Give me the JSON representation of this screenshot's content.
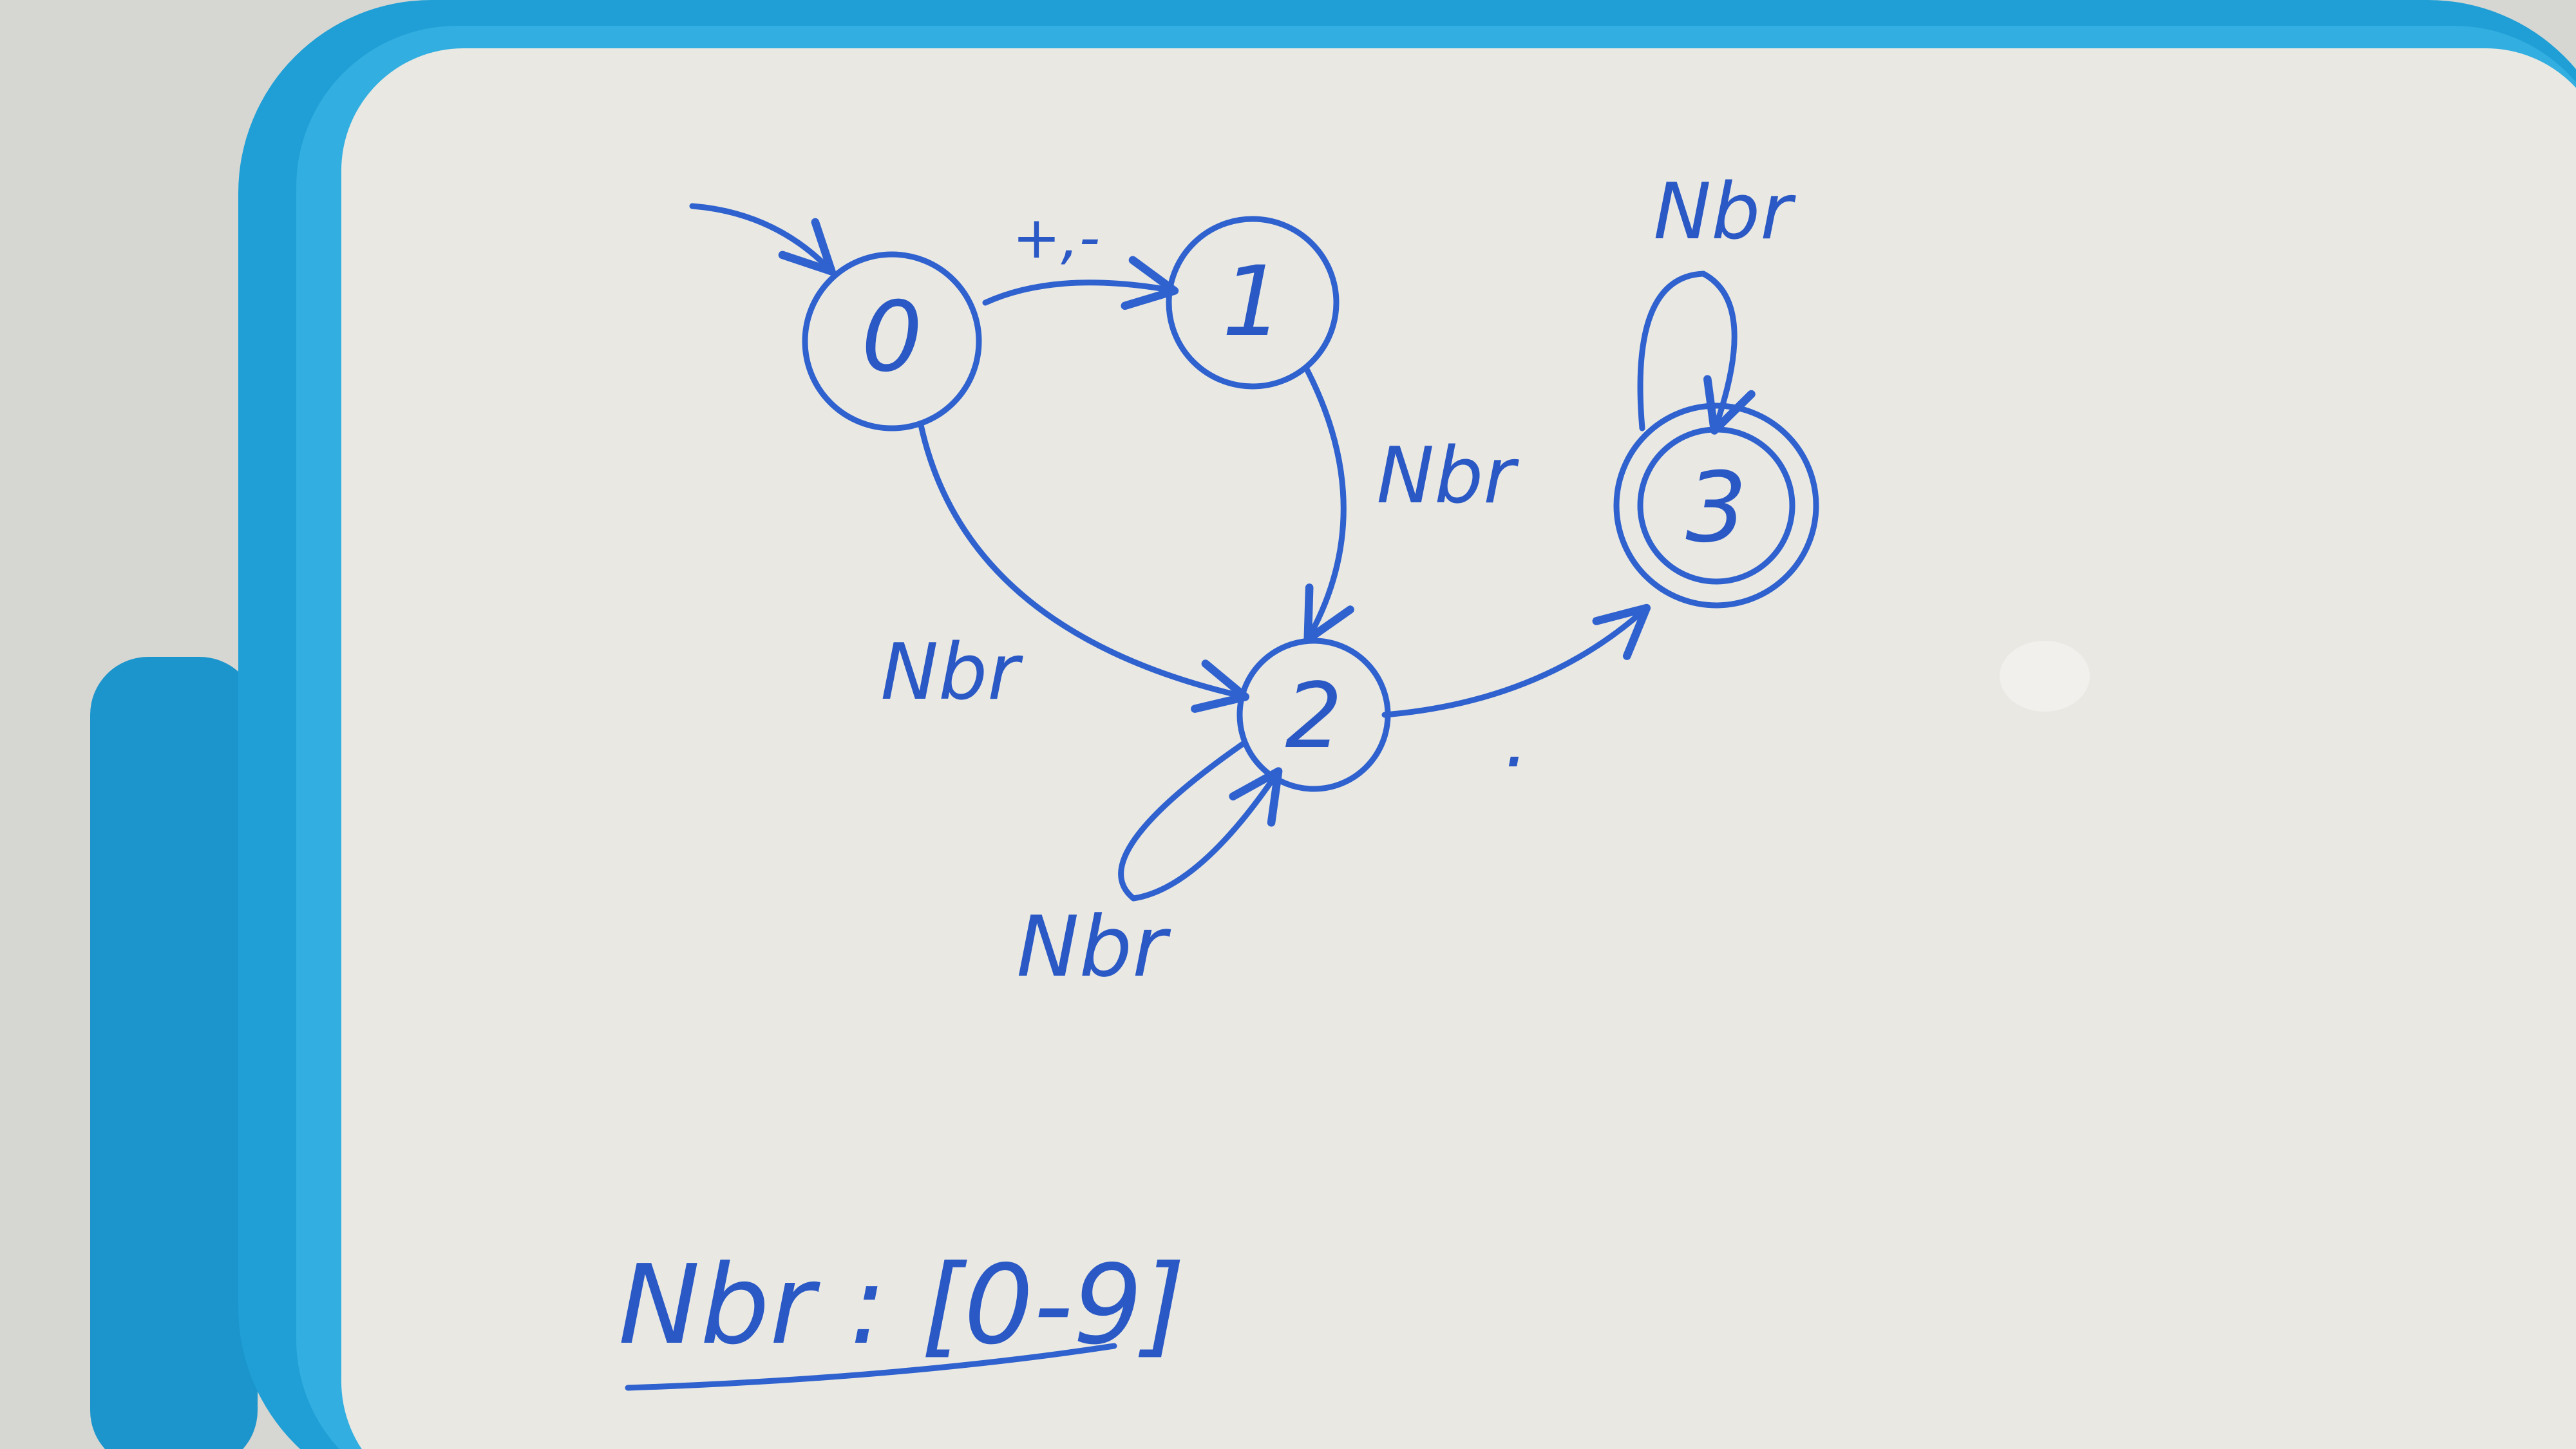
{
  "colors": {
    "ink": "#2f62cf",
    "board_frame": "#1f9fd6",
    "board_surface": "#e9e8e3",
    "background": "#d6d6d2"
  },
  "automaton": {
    "states": [
      {
        "id": "0",
        "label": "0",
        "initial": true,
        "accepting": false
      },
      {
        "id": "1",
        "label": "1",
        "initial": false,
        "accepting": false
      },
      {
        "id": "2",
        "label": "2",
        "initial": false,
        "accepting": false
      },
      {
        "id": "3",
        "label": "3",
        "initial": false,
        "accepting": true
      }
    ],
    "transitions": [
      {
        "from": "0",
        "to": "1",
        "label": "+,-"
      },
      {
        "from": "0",
        "to": "2",
        "label": "Nbr"
      },
      {
        "from": "1",
        "to": "2",
        "label": "Nbr"
      },
      {
        "from": "2",
        "to": "2",
        "label": "Nbr"
      },
      {
        "from": "2",
        "to": "3",
        "label": "."
      },
      {
        "from": "3",
        "to": "3",
        "label": "Nbr"
      }
    ]
  },
  "definition": {
    "text": "Nbr : [0-9]"
  }
}
